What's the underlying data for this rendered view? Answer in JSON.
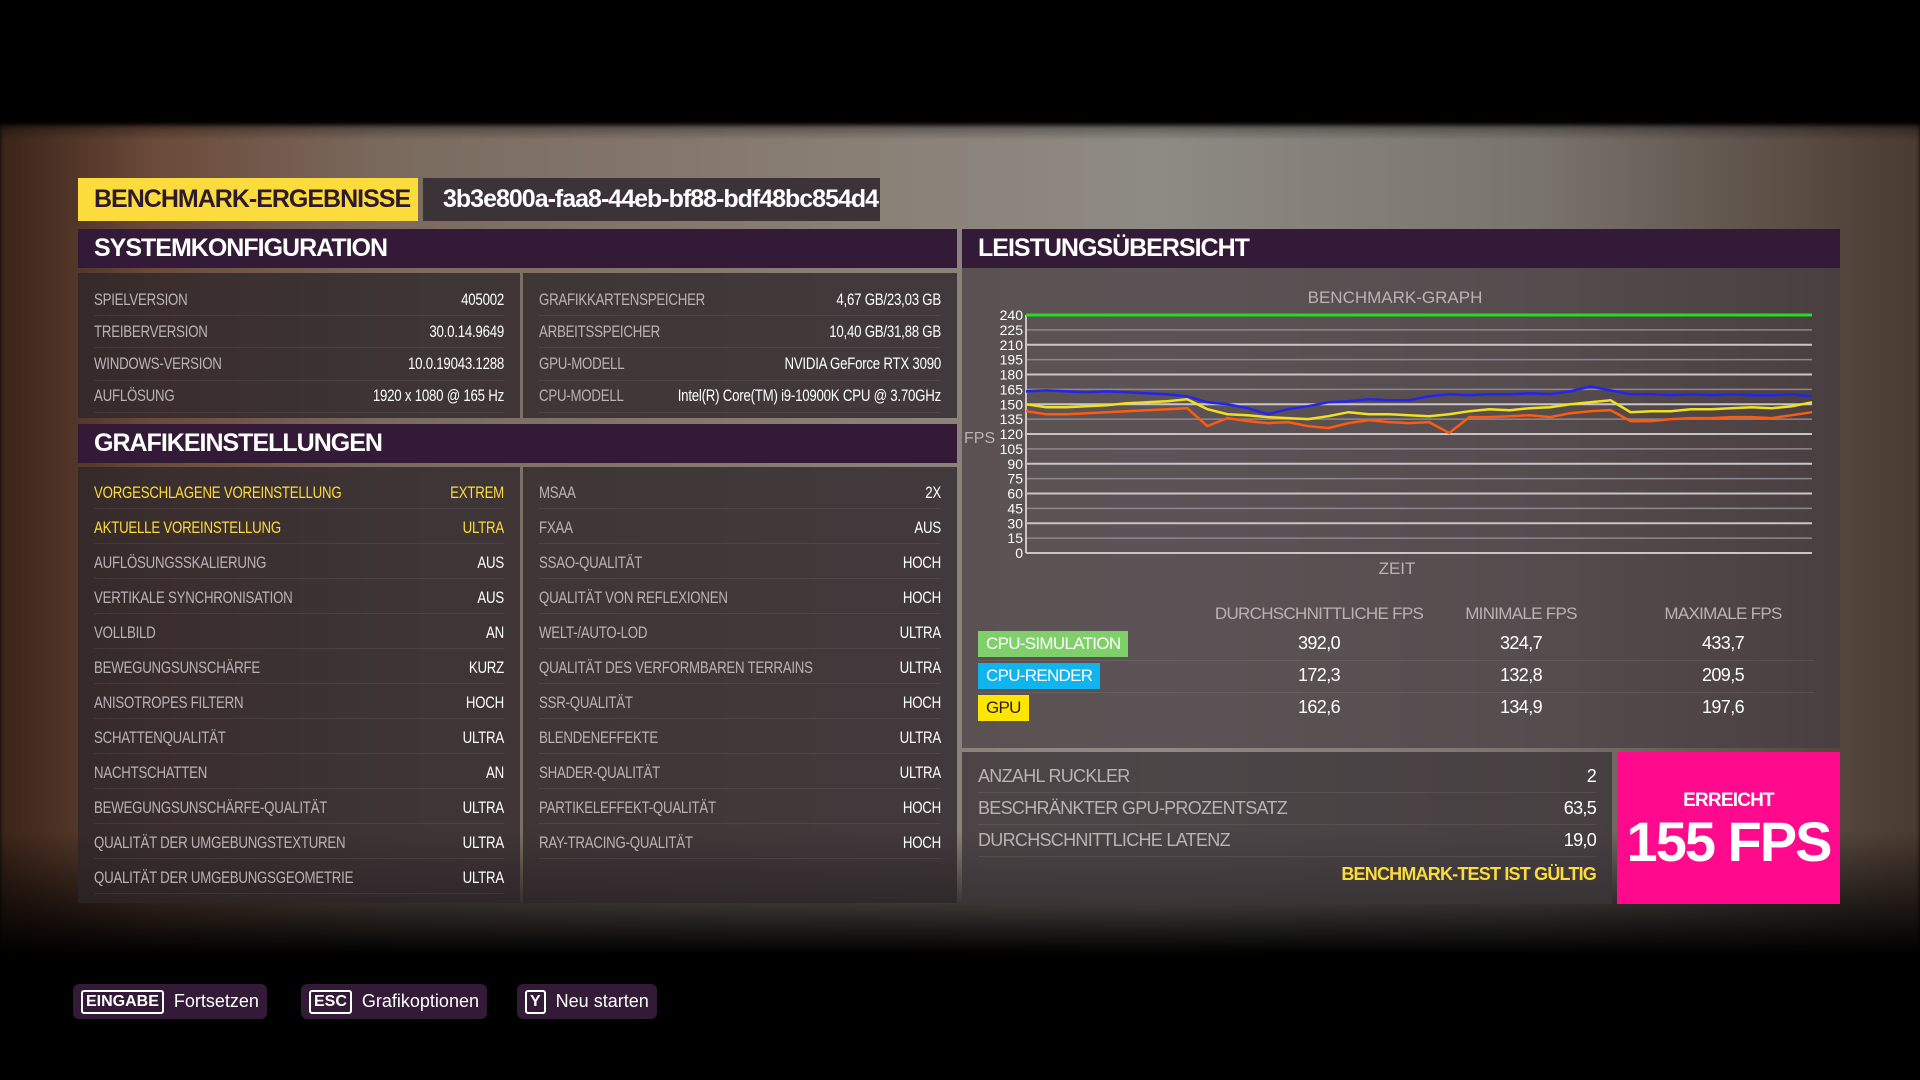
{
  "header": {
    "title": "BENCHMARK-ERGEBNISSE",
    "benchmark_id": "3b3e800a-faa8-44eb-bf88-bdf48bc854d4"
  },
  "system": {
    "title": "SYSTEMKONFIGURATION",
    "left": [
      {
        "k": "SPIELVERSION",
        "v": "405002"
      },
      {
        "k": "TREIBERVERSION",
        "v": "30.0.14.9649"
      },
      {
        "k": "WINDOWS-VERSION",
        "v": "10.0.19043.1288"
      },
      {
        "k": "AUFLÖSUNG",
        "v": "1920 x 1080 @ 165 Hz"
      }
    ],
    "right": [
      {
        "k": "GRAFIKKARTENSPEICHER",
        "v": "4,67 GB/23,03 GB"
      },
      {
        "k": "ARBEITSSPEICHER",
        "v": "10,40 GB/31,88 GB"
      },
      {
        "k": "GPU-MODELL",
        "v": "NVIDIA GeForce RTX 3090"
      },
      {
        "k": "CPU-MODELL",
        "v": "Intel(R) Core(TM) i9-10900K CPU @ 3.70GHz"
      }
    ]
  },
  "graphics": {
    "title": "GRAFIKEINSTELLUNGEN",
    "left": [
      {
        "k": "VORGESCHLAGENE VOREINSTELLUNG",
        "v": "EXTREM"
      },
      {
        "k": "AKTUELLE VOREINSTELLUNG",
        "v": "ULTRA"
      },
      {
        "k": "AUFLÖSUNGSSKALIERUNG",
        "v": "AUS"
      },
      {
        "k": "VERTIKALE SYNCHRONISATION",
        "v": "AUS"
      },
      {
        "k": "VOLLBILD",
        "v": "AN"
      },
      {
        "k": "BEWEGUNGSUNSCHÄRFE",
        "v": "KURZ"
      },
      {
        "k": "ANISOTROPES FILTERN",
        "v": "HOCH"
      },
      {
        "k": "SCHATTENQUALITÄT",
        "v": "ULTRA"
      },
      {
        "k": "NACHTSCHATTEN",
        "v": "AN"
      },
      {
        "k": "BEWEGUNGSUNSCHÄRFE-QUALITÄT",
        "v": "ULTRA"
      },
      {
        "k": "QUALITÄT DER UMGEBUNGSTEXTUREN",
        "v": "ULTRA"
      },
      {
        "k": "QUALITÄT DER UMGEBUNGSGEOMETRIE",
        "v": "ULTRA"
      }
    ],
    "right": [
      {
        "k": "MSAA",
        "v": "2X"
      },
      {
        "k": "FXAA",
        "v": "AUS"
      },
      {
        "k": "SSAO-QUALITÄT",
        "v": "HOCH"
      },
      {
        "k": "QUALITÄT VON REFLEXIONEN",
        "v": "HOCH"
      },
      {
        "k": "WELT-/AUTO-LOD",
        "v": "ULTRA"
      },
      {
        "k": "QUALITÄT DES VERFORMBAREN TERRAINS",
        "v": "ULTRA"
      },
      {
        "k": "SSR-QUALITÄT",
        "v": "HOCH"
      },
      {
        "k": "BLENDENEFFEKTE",
        "v": "ULTRA"
      },
      {
        "k": "SHADER-QUALITÄT",
        "v": "ULTRA"
      },
      {
        "k": "PARTIKELEFFEKT-QUALITÄT",
        "v": "HOCH"
      },
      {
        "k": "RAY-TRACING-QUALITÄT",
        "v": "HOCH"
      }
    ]
  },
  "performance": {
    "title": "LEISTUNGSÜBERSICHT",
    "columns": [
      "DURCHSCHNITTLICHE FPS",
      "MINIMALE FPS",
      "MAXIMALE FPS"
    ],
    "rows": [
      {
        "label": "CPU-SIMULATION",
        "color": "#7fcf6a",
        "text_color": "#ffffff",
        "values": [
          "392,0",
          "324,7",
          "433,7"
        ]
      },
      {
        "label": "CPU-RENDER",
        "color": "#10b4ee",
        "text_color": "#ffffff",
        "values": [
          "172,3",
          "132,8",
          "209,5"
        ]
      },
      {
        "label": "GPU",
        "color": "#ffe600",
        "text_color": "#2e1a2e",
        "values": [
          "162,6",
          "134,9",
          "197,6"
        ]
      }
    ],
    "stats": [
      {
        "k": "ANZAHL RUCKLER",
        "v": "2"
      },
      {
        "k": "BESCHRÄNKTER GPU-PROZENTSATZ",
        "v": "63,5"
      },
      {
        "k": "DURCHSCHNITTLICHE LATENZ",
        "v": "19,0"
      }
    ],
    "valid_text": "BENCHMARK-TEST IST GÜLTIG",
    "achieved_label": "ERREICHT",
    "achieved_value": "155 FPS",
    "achieved_color": "#ff0a8c"
  },
  "chart_data": {
    "type": "line",
    "title": "BENCHMARK-GRAPH",
    "xlabel": "ZEIT",
    "ylabel": "FPS",
    "ylim": [
      0,
      240
    ],
    "y_ticks": [
      "0",
      "15",
      "30",
      "45",
      "60",
      "75",
      "90",
      "105",
      "120",
      "135",
      "150",
      "165",
      "180",
      "195",
      "210",
      "225",
      "240"
    ],
    "grid": true,
    "series": [
      {
        "color": "#22dd22",
        "values": [
          240,
          240,
          240,
          240,
          240,
          240,
          240,
          240,
          240,
          240,
          240,
          240,
          240,
          240,
          240,
          240,
          240,
          240,
          240,
          240,
          240,
          240,
          240,
          240,
          240,
          240,
          240,
          240,
          240,
          240,
          240,
          240,
          240,
          240,
          240,
          240,
          240,
          240,
          240,
          240
        ]
      },
      {
        "color": "#2424ee",
        "values": [
          163,
          164,
          163,
          162,
          163,
          162,
          161,
          160,
          158,
          152,
          150,
          146,
          140,
          145,
          148,
          152,
          153,
          155,
          154,
          154,
          158,
          160,
          159,
          160,
          160,
          161,
          160,
          163,
          168,
          164,
          160,
          160,
          159,
          160,
          159,
          160,
          159,
          159,
          160,
          158
        ]
      },
      {
        "color": "#f0e020",
        "values": [
          150,
          147,
          147,
          148,
          149,
          151,
          152,
          153,
          155,
          145,
          140,
          139,
          137,
          136,
          135,
          138,
          142,
          140,
          140,
          139,
          138,
          140,
          143,
          145,
          144,
          146,
          147,
          150,
          152,
          154,
          142,
          143,
          143,
          145,
          145,
          146,
          147,
          146,
          148,
          152
        ]
      },
      {
        "color": "#ff5a10",
        "values": [
          143,
          140,
          140,
          141,
          142,
          143,
          144,
          145,
          146,
          128,
          136,
          133,
          131,
          132,
          128,
          126,
          131,
          134,
          132,
          131,
          132,
          121,
          137,
          137,
          138,
          139,
          137,
          141,
          143,
          144,
          133,
          133,
          135,
          136,
          136,
          137,
          137,
          136,
          139,
          142
        ]
      }
    ]
  },
  "footer": {
    "buttons": [
      {
        "key": "EINGABE",
        "label": "Fortsetzen"
      },
      {
        "key": "ESC",
        "label": "Grafikoptionen"
      },
      {
        "key": "Y",
        "label": "Neu starten"
      }
    ]
  }
}
